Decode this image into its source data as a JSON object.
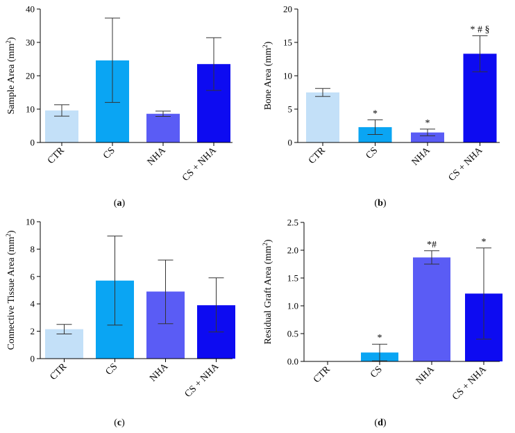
{
  "colors": {
    "CTR": "#c3e0f8",
    "CS": "#0aa5f3",
    "NHA": "#5a5cf5",
    "CS + NHA": "#0d0bf1"
  },
  "chart_data": [
    {
      "type": "bar",
      "panel": "(a)",
      "categories": [
        "CTR",
        "CS",
        "NHA",
        "CS + NHA"
      ],
      "values": [
        9.6,
        24.6,
        8.6,
        23.5
      ],
      "error_low": [
        7.9,
        12.0,
        7.8,
        15.6
      ],
      "error_high": [
        11.3,
        37.3,
        9.4,
        31.4
      ],
      "significance": [
        "",
        "",
        "",
        ""
      ],
      "ylabel": "Sample Area (mm²)",
      "ylabel_main": "Sample Area (mm",
      "ylabel_sup": "2",
      "ylabel_end": ")",
      "ylim": [
        0,
        40
      ],
      "yticks": [
        0,
        10,
        20,
        30,
        40
      ],
      "ytick_labels": [
        "0",
        "10",
        "20",
        "30",
        "40"
      ]
    },
    {
      "type": "bar",
      "panel": "(b)",
      "categories": [
        "CTR",
        "CS",
        "NHA",
        "CS + NHA"
      ],
      "values": [
        7.5,
        2.3,
        1.5,
        13.3
      ],
      "error_low": [
        6.9,
        1.2,
        1.0,
        10.6
      ],
      "error_high": [
        8.1,
        3.4,
        2.0,
        16.0
      ],
      "significance": [
        "",
        "*",
        "*",
        "* # §"
      ],
      "ylabel": "Bone Area (mm²)",
      "ylabel_main": "Bone Area (mm",
      "ylabel_sup": "2",
      "ylabel_end": ")",
      "ylim": [
        0,
        20
      ],
      "yticks": [
        0,
        5,
        10,
        15,
        20
      ],
      "ytick_labels": [
        "0",
        "5",
        "10",
        "15",
        "20"
      ]
    },
    {
      "type": "bar",
      "panel": "(c)",
      "categories": [
        "CTR",
        "CS",
        "NHA",
        "CS + NHA"
      ],
      "values": [
        2.15,
        5.7,
        4.9,
        3.9
      ],
      "error_low": [
        1.8,
        2.45,
        2.55,
        1.95
      ],
      "error_high": [
        2.5,
        8.95,
        7.2,
        5.9
      ],
      "significance": [
        "",
        "",
        "",
        ""
      ],
      "ylabel": "Connective Tissue Area (mm²)",
      "ylabel_main": "Connective Tissue  Area (mm",
      "ylabel_sup": "2",
      "ylabel_end": ")",
      "ylim": [
        0,
        10
      ],
      "yticks": [
        0,
        2,
        4,
        6,
        8,
        10
      ],
      "ytick_labels": [
        "0",
        "2",
        "4",
        "6",
        "8",
        "10"
      ]
    },
    {
      "type": "bar",
      "panel": "(d)",
      "categories": [
        "CTR",
        "CS",
        "NHA",
        "CS + NHA"
      ],
      "values": [
        0.0,
        0.16,
        1.87,
        1.22
      ],
      "error_low": [
        null,
        0.01,
        1.75,
        0.4
      ],
      "error_high": [
        null,
        0.31,
        1.99,
        2.04
      ],
      "significance": [
        "",
        "*",
        "*#",
        "*"
      ],
      "ylabel": "Residual Graft Area (mm²)",
      "ylabel_main": "Residual Graft Area (mm",
      "ylabel_sup": "2",
      "ylabel_end": ")",
      "ylim": [
        0,
        2.5
      ],
      "yticks": [
        0,
        0.5,
        1.0,
        1.5,
        2.0,
        2.5
      ],
      "ytick_labels": [
        "0.0",
        "0.5",
        "1.0",
        "1.5",
        "2.0",
        "2.5"
      ]
    }
  ]
}
